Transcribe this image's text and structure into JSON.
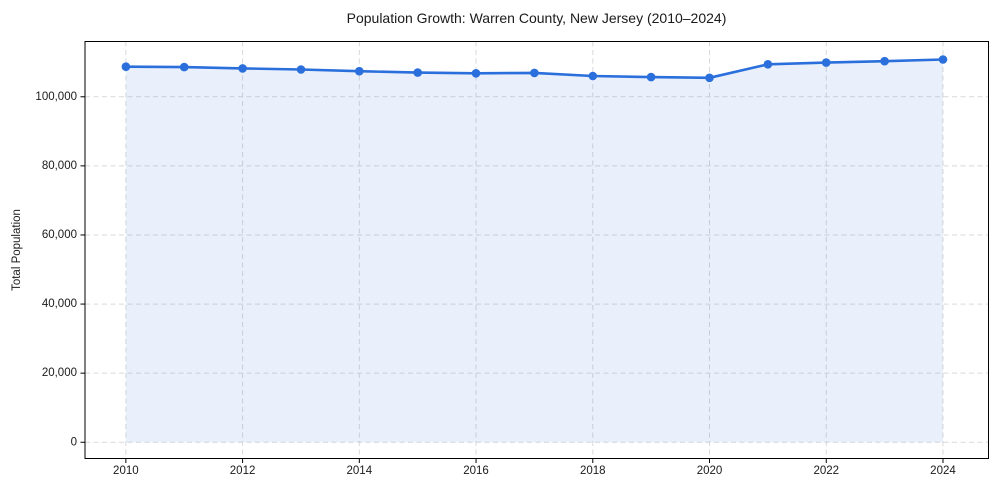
{
  "chart_data": {
    "type": "line",
    "title": "Population Growth: Warren County, New Jersey (2010–2024)",
    "xlabel": "",
    "ylabel": "Total Population",
    "x": [
      2010,
      2011,
      2012,
      2013,
      2014,
      2015,
      2016,
      2017,
      2018,
      2019,
      2020,
      2021,
      2022,
      2023,
      2024
    ],
    "series": [
      {
        "name": "Total Population",
        "values": [
          108700,
          108600,
          108200,
          107900,
          107400,
          107000,
          106800,
          106900,
          106000,
          105700,
          105500,
          109400,
          109900,
          110300,
          110800
        ]
      }
    ],
    "xticks": [
      2010,
      2012,
      2014,
      2016,
      2018,
      2020,
      2022,
      2024
    ],
    "yticks": [
      0,
      20000,
      40000,
      60000,
      80000,
      100000
    ],
    "ytick_labels": [
      "0",
      "20,000",
      "40,000",
      "60,000",
      "80,000",
      "100,000"
    ],
    "xlim": [
      2009.3,
      2024.78
    ],
    "ylim": [
      -4700,
      116000
    ],
    "grid": true,
    "grid_style": "dashed",
    "legend_position": "none",
    "fill_to_zero": true,
    "marker": "circle",
    "colors": {
      "line": "#2a6fdb",
      "marker": "#2a6fdb",
      "fill": "rgba(42,111,219,0.10)",
      "grid": "#d9d9d9",
      "spine": "#000000",
      "tick": "#000000",
      "text": "#1a1a1a",
      "background": "#ffffff"
    }
  }
}
